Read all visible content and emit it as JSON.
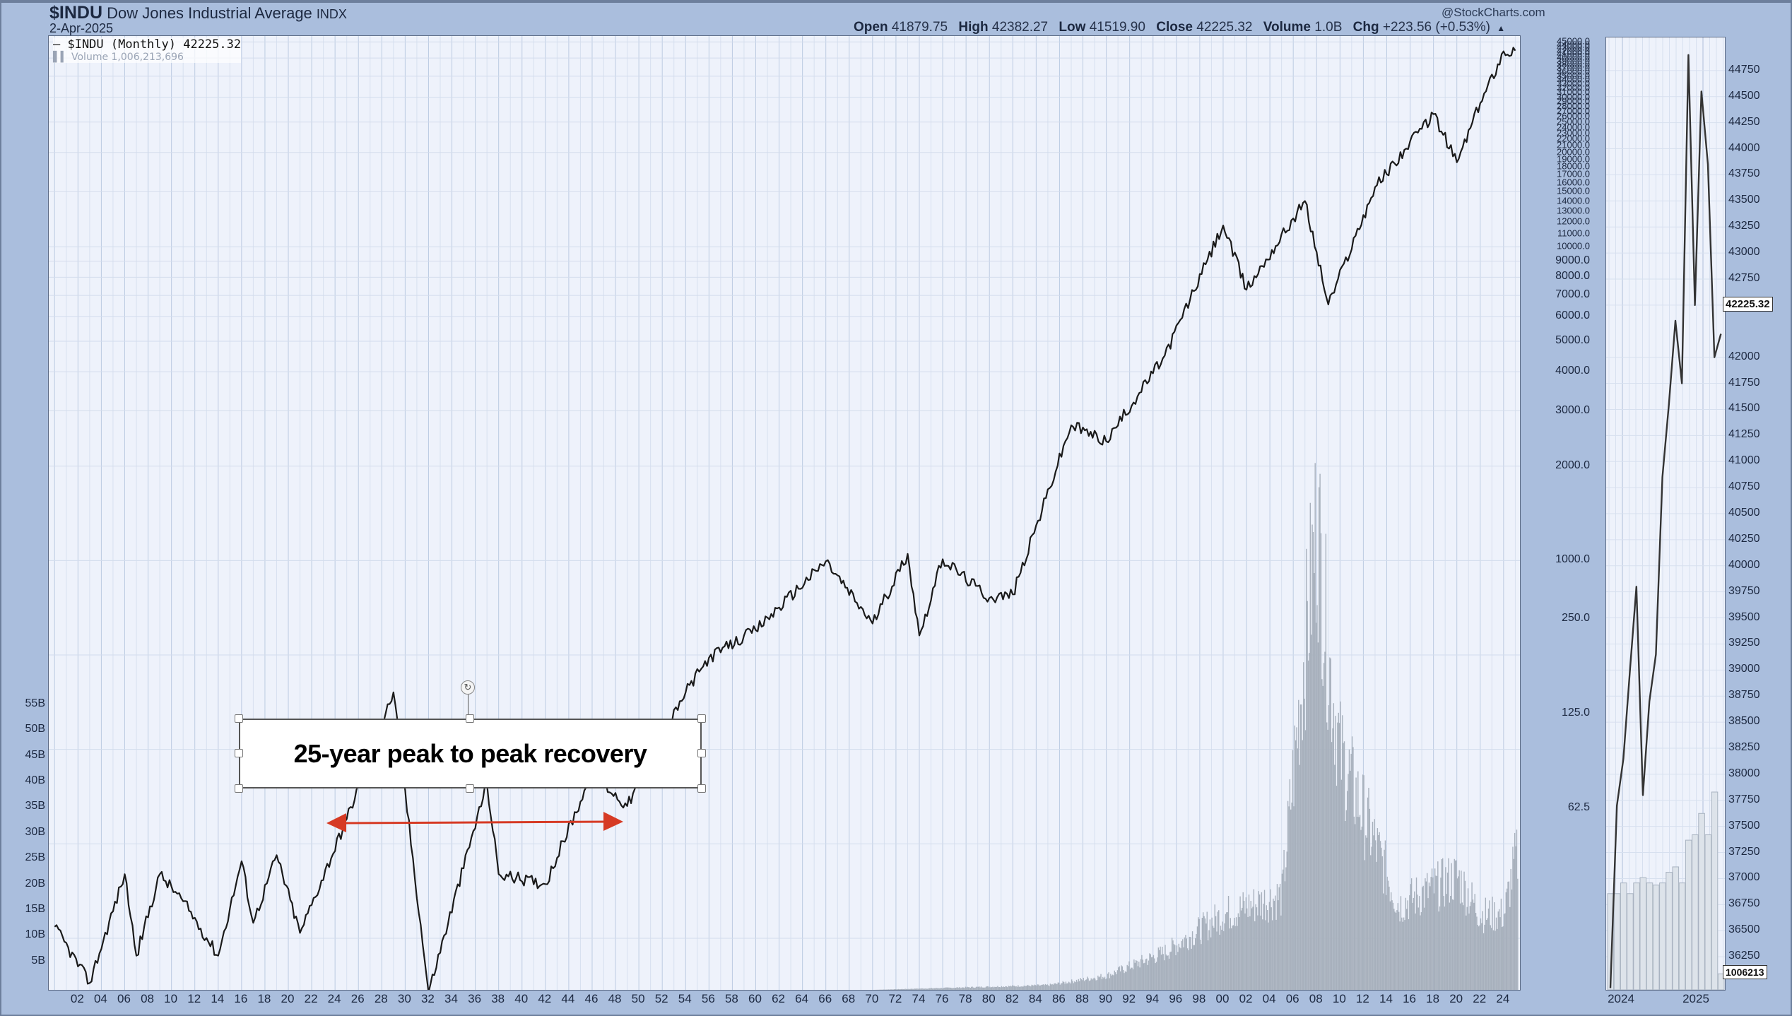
{
  "header": {
    "symbol": "$INDU",
    "name": "Dow Jones Industrial Average",
    "exchange": "INDX",
    "date": "2-Apr-2025",
    "brand": "@StockCharts.com",
    "stats": {
      "open_label": "Open",
      "open": "41879.75",
      "high_label": "High",
      "high": "42382.27",
      "low_label": "Low",
      "low": "41519.90",
      "close_label": "Close",
      "close": "42225.32",
      "volume_label": "Volume",
      "volume": "1.0B",
      "chg_label": "Chg",
      "chg": "+223.56 (+0.53%)",
      "chg_icon": "triangle-up-icon"
    }
  },
  "legend": {
    "price": "— $INDU (Monthly) 42225.32",
    "volume": "Volume 1,006,213,696"
  },
  "annotation": {
    "text": "25-year peak to peak recovery",
    "arrow_color": "#d63a24"
  },
  "colors": {
    "frame_bg": "#aabedd",
    "plot_bg": "#eef2fb",
    "price_line": "#1a1a1a",
    "volume_bar": "#a7b0bc",
    "grid": "#c7d3e6"
  },
  "main_tags": {
    "last_price": "42225.32",
    "last_volume": "1006213"
  },
  "chart_data": [
    {
      "type": "line",
      "title": "$INDU Dow Jones Industrial Average INDX (Monthly)",
      "subtitle": "2-Apr-2025",
      "xlabel": "",
      "ylabel": "",
      "yscale": "log",
      "x_tick_labels": [
        "02",
        "04",
        "06",
        "08",
        "10",
        "12",
        "14",
        "16",
        "18",
        "20",
        "22",
        "24",
        "26",
        "28",
        "30",
        "32",
        "34",
        "36",
        "38",
        "40",
        "42",
        "44",
        "46",
        "48",
        "50",
        "52",
        "54",
        "56",
        "58",
        "60",
        "62",
        "64",
        "66",
        "68",
        "70",
        "72",
        "74",
        "76",
        "78",
        "80",
        "82",
        "84",
        "86",
        "88",
        "90",
        "92",
        "94",
        "96",
        "98",
        "00",
        "02",
        "04",
        "06",
        "08",
        "10",
        "12",
        "14",
        "16",
        "18",
        "20",
        "22",
        "24"
      ],
      "y_tick_labels_right": [
        "45000.0",
        "44000.0",
        "43000.0",
        "42000.0",
        "41000.0",
        "40000.0",
        "39000.0",
        "38000.0",
        "37000.0",
        "36000.0",
        "35000.0",
        "34000.0",
        "33000.0",
        "32000.0",
        "31000.0",
        "30000.0",
        "29000.0",
        "28000.0",
        "27000.0",
        "26000.0",
        "25000.0",
        "24000.0",
        "23000.0",
        "22000.0",
        "21000.0",
        "20000.0",
        "19000.0",
        "18000.0",
        "17000.0",
        "16000.0",
        "15000.0",
        "14000.0",
        "13000.0",
        "12000.0",
        "11000.0",
        "10000.0",
        "9000.0",
        "8000.0",
        "7000.0",
        "6000.0",
        "5000.0",
        "4000.0",
        "3000.0",
        "2000.0",
        "1000.0",
        "250.0",
        "125.0",
        "62.5"
      ],
      "y_tick_labels_left_volume": [
        "55B",
        "50B",
        "45B",
        "40B",
        "35B",
        "30B",
        "25B",
        "20B",
        "15B",
        "10B",
        "5B"
      ],
      "series": [
        {
          "name": "$INDU (Monthly)",
          "x": [
            1900,
            1903,
            1906,
            1907,
            1909,
            1911,
            1914,
            1916,
            1917,
            1919,
            1921,
            1925,
            1929,
            1932,
            1937,
            1938,
            1942,
            1946,
            1949,
            1954,
            1956,
            1960,
            1966,
            1970,
            1973,
            1974,
            1976,
            1980,
            1982,
            1987,
            1990,
            1995,
            2000,
            2002,
            2007,
            2009,
            2013,
            2018,
            2020,
            2022,
            2024,
            2025
          ],
          "values": [
            68,
            45,
            100,
            55,
            100,
            82,
            55,
            110,
            70,
            115,
            65,
            150,
            380,
            42,
            195,
            100,
            93,
            210,
            165,
            380,
            490,
            600,
            995,
            630,
            1050,
            577,
            1010,
            760,
            780,
            2700,
            2400,
            4500,
            11700,
            7300,
            14000,
            6550,
            15500,
            26500,
            18600,
            28700,
            42000,
            42225
          ]
        },
        {
          "name": "Volume",
          "note": "monthly volume bars; visible mainly from ~1985 onward, peak ~50B in 2008-09",
          "x": [
            1985,
            1990,
            1995,
            2000,
            2005,
            2008,
            2009,
            2010,
            2015,
            2020,
            2022,
            2024,
            2025
          ],
          "values": [
            0.5,
            1.5,
            4,
            8,
            10,
            50,
            35,
            25,
            9,
            12,
            8,
            8,
            14
          ]
        }
      ]
    },
    {
      "type": "line",
      "title": "$INDU zoom 2024-2025",
      "x_tick_labels": [
        "2024",
        "2025"
      ],
      "y_tick_labels": [
        "44750",
        "44500",
        "44250",
        "44000",
        "43750",
        "43500",
        "43250",
        "43000",
        "42750",
        "42500",
        "42000",
        "41750",
        "41500",
        "41250",
        "41000",
        "40750",
        "40500",
        "40250",
        "40000",
        "39750",
        "39500",
        "39250",
        "39000",
        "38750",
        "38500",
        "38250",
        "38000",
        "37750",
        "37500",
        "37250",
        "37000",
        "36750",
        "36500",
        "36250"
      ],
      "ylim": [
        36000,
        45000
      ],
      "last_value_tag": "42225.32",
      "volume_tag": "1006213",
      "series": [
        {
          "name": "$INDU (Monthly)",
          "x": [
            "2023-11",
            "2023-12",
            "2024-01",
            "2024-02",
            "2024-03",
            "2024-04",
            "2024-05",
            "2024-06",
            "2024-07",
            "2024-08",
            "2024-09",
            "2024-10",
            "2024-11",
            "2024-12",
            "2025-01",
            "2025-02",
            "2025-03",
            "2025-04"
          ],
          "values": [
            35950,
            37700,
            38150,
            38990,
            39800,
            37800,
            38700,
            39150,
            40850,
            41550,
            42350,
            41750,
            44900,
            42500,
            44550,
            43850,
            42000,
            42225
          ]
        }
      ]
    }
  ]
}
